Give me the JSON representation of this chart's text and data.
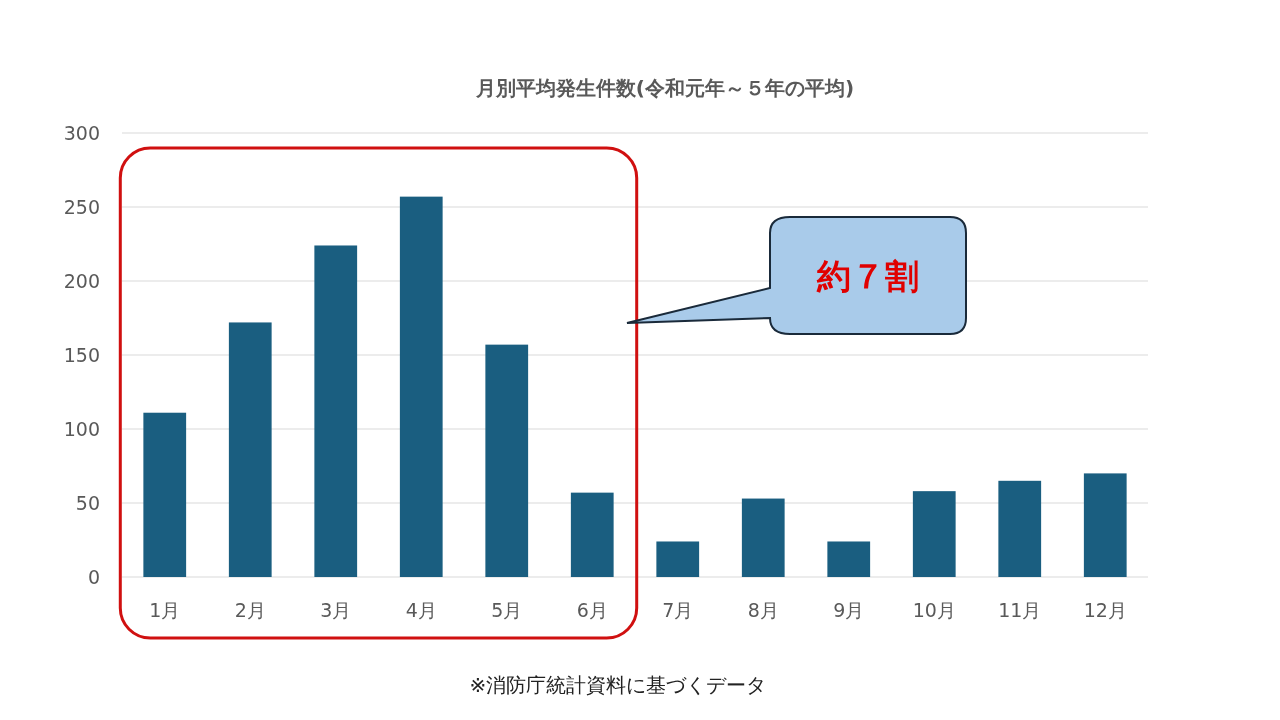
{
  "chart_data": {
    "type": "bar",
    "title": "月別平均発生件数(令和元年～５年の平均)",
    "categories": [
      "1月",
      "2月",
      "3月",
      "4月",
      "5月",
      "6月",
      "7月",
      "8月",
      "9月",
      "10月",
      "11月",
      "12月"
    ],
    "values": [
      111,
      172,
      224,
      257,
      157,
      57,
      24,
      53,
      24,
      58,
      65,
      70
    ],
    "color": "#1a5e80",
    "ylim": [
      0,
      300
    ],
    "yticks": [
      0,
      50,
      100,
      150,
      200,
      250,
      300
    ],
    "grid": "y",
    "annotations": [
      "約７割",
      "※消防庁統計資料に基づくデータ"
    ]
  }
}
